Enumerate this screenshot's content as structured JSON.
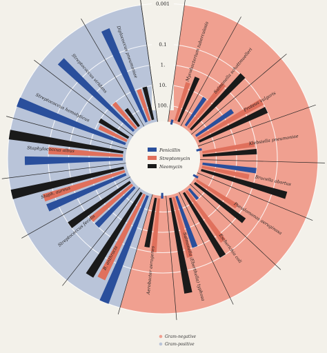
{
  "chart_data": {
    "type": "radial-bar",
    "scale": "log",
    "ticks": [
      "0.001",
      "0.1",
      "1.",
      "10.",
      "100."
    ],
    "series": [
      {
        "name": "Penicillin",
        "color": "#2a4f9c"
      },
      {
        "name": "Streptomycin",
        "color": "#e0705c"
      },
      {
        "name": "Neomycin",
        "color": "#1a1a1a"
      }
    ],
    "groups": [
      {
        "name": "Gram-negative",
        "color": "#f0a090"
      },
      {
        "name": "Gram-positive",
        "color": "#b9c4d9"
      }
    ],
    "bacteria": [
      {
        "name": "Mycobacterium tuberculosis",
        "group": "Gram-negative",
        "values": [
          800,
          5,
          2
        ]
      },
      {
        "name": "Salmonella schottmuelleri",
        "group": "Gram-negative",
        "values": [
          10,
          0.8,
          0.09
        ]
      },
      {
        "name": "Proteus vulgaris",
        "group": "Gram-negative",
        "values": [
          3,
          0.1,
          0.1
        ]
      },
      {
        "name": "Klebsiella pneumoniae",
        "group": "Gram-negative",
        "values": [
          850,
          1.2,
          1
        ]
      },
      {
        "name": "Brucella abortus",
        "group": "Gram-negative",
        "values": [
          1,
          2,
          0.02
        ]
      },
      {
        "name": "Pseudomonas aeruginosa",
        "group": "Gram-negative",
        "values": [
          850,
          2,
          0.4
        ]
      },
      {
        "name": "Escherichia coli",
        "group": "Gram-negative",
        "values": [
          100,
          0.4,
          0.1
        ]
      },
      {
        "name": "Salmonella (Eberthella) typhosa",
        "group": "Gram-negative",
        "values": [
          1,
          0.4,
          0.008
        ]
      },
      {
        "name": "Aerobacter aerogenes",
        "group": "Gram-negative",
        "values": [
          870,
          1,
          1.6
        ]
      },
      {
        "name": "Diplococcus pneumoniae",
        "group": "Gram-positive",
        "values": [
          0.005,
          11,
          10
        ]
      },
      {
        "name": "Streptococcus viridans",
        "group": "Gram-positive",
        "values": [
          0.005,
          10,
          40
        ]
      },
      {
        "name": "Streptococcus hemolyticus",
        "group": "Gram-positive",
        "values": [
          0.001,
          14,
          10
        ]
      },
      {
        "name": "Staphylococcus albus",
        "group": "Gram-positive",
        "values": [
          0.007,
          0.1,
          0.001
        ]
      },
      {
        "name": "Staph. aureus",
        "group": "Gram-positive",
        "values": [
          0.03,
          0.03,
          0.001
        ]
      },
      {
        "name": "Streptococcus fecalis",
        "group": "Gram-positive",
        "values": [
          1,
          1,
          0.1
        ]
      },
      {
        "name": "B. anthracis",
        "group": "Gram-positive",
        "values": [
          0.001,
          0.01,
          0.007
        ]
      }
    ]
  }
}
